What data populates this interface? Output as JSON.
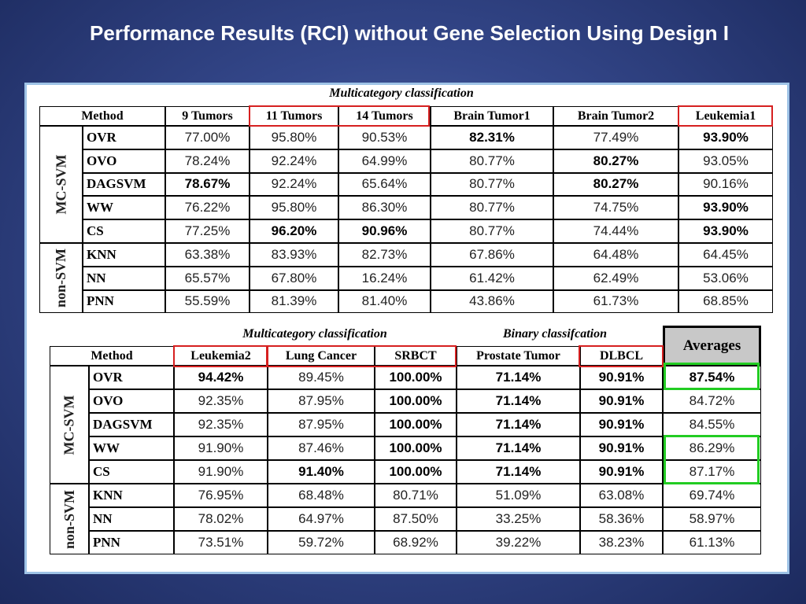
{
  "title": "Performance Results (RCI) without Gene Selection Using Design I",
  "table1": {
    "caption": "Multicategory classification",
    "header": [
      "Method",
      "9 Tumors",
      "11 Tumors",
      "14 Tumors",
      "Brain Tumor1",
      "Brain Tumor2",
      "Leukemia1"
    ],
    "groups": [
      "MC-SVM",
      "non-SVM"
    ],
    "rows": [
      [
        "OVR",
        "77.00%",
        "95.80%",
        "90.53%",
        "82.31%",
        "77.49%",
        "93.90%"
      ],
      [
        "OVO",
        "78.24%",
        "92.24%",
        "64.99%",
        "80.77%",
        "80.27%",
        "93.05%"
      ],
      [
        "DAGSVM",
        "78.67%",
        "92.24%",
        "65.64%",
        "80.77%",
        "80.27%",
        "90.16%"
      ],
      [
        "WW",
        "76.22%",
        "95.80%",
        "86.30%",
        "80.77%",
        "74.75%",
        "93.90%"
      ],
      [
        "CS",
        "77.25%",
        "96.20%",
        "90.96%",
        "80.77%",
        "74.44%",
        "93.90%"
      ],
      [
        "KNN",
        "63.38%",
        "83.93%",
        "82.73%",
        "67.86%",
        "64.48%",
        "64.45%"
      ],
      [
        "NN",
        "65.57%",
        "67.80%",
        "16.24%",
        "61.42%",
        "62.49%",
        "53.06%"
      ],
      [
        "PNN",
        "55.59%",
        "81.39%",
        "81.40%",
        "43.86%",
        "61.73%",
        "68.85%"
      ]
    ]
  },
  "table2": {
    "captions": [
      "Multicategory classification",
      "Binary classifcation"
    ],
    "averages_header": "Averages",
    "header": [
      "Method",
      "Leukemia2",
      "Lung Cancer",
      "SRBCT",
      "Prostate Tumor",
      "DLBCL"
    ],
    "groups": [
      "MC-SVM",
      "non-SVM"
    ],
    "rows": [
      [
        "OVR",
        "94.42%",
        "89.45%",
        "100.00%",
        "71.14%",
        "90.91%",
        "87.54%"
      ],
      [
        "OVO",
        "92.35%",
        "87.95%",
        "100.00%",
        "71.14%",
        "90.91%",
        "84.72%"
      ],
      [
        "DAGSVM",
        "92.35%",
        "87.95%",
        "100.00%",
        "71.14%",
        "90.91%",
        "84.55%"
      ],
      [
        "WW",
        "91.90%",
        "87.46%",
        "100.00%",
        "71.14%",
        "90.91%",
        "86.29%"
      ],
      [
        "CS",
        "91.90%",
        "91.40%",
        "100.00%",
        "71.14%",
        "90.91%",
        "87.17%"
      ],
      [
        "KNN",
        "76.95%",
        "68.48%",
        "80.71%",
        "51.09%",
        "63.08%",
        "69.74%"
      ],
      [
        "NN",
        "78.02%",
        "64.97%",
        "87.50%",
        "33.25%",
        "58.36%",
        "58.97%"
      ],
      [
        "PNN",
        "73.51%",
        "59.72%",
        "68.92%",
        "39.22%",
        "38.23%",
        "61.13%"
      ]
    ]
  }
}
